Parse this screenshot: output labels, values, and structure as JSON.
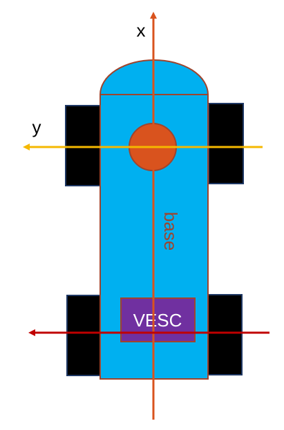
{
  "labels": {
    "x_axis": "x",
    "y_axis": "y",
    "base": "base",
    "vesc": "VESC"
  },
  "colors": {
    "body": "#00B0F0",
    "body_outline": "#A0442C",
    "wheel": "#000000",
    "wheel_outline": "#1F3864",
    "joint": "#D9531E",
    "x_axis": "#D9531E",
    "y_axis": "#F5B800",
    "rear_axis": "#C00000",
    "vesc_box": "#7030A0",
    "vesc_text": "#FFFFFF"
  }
}
